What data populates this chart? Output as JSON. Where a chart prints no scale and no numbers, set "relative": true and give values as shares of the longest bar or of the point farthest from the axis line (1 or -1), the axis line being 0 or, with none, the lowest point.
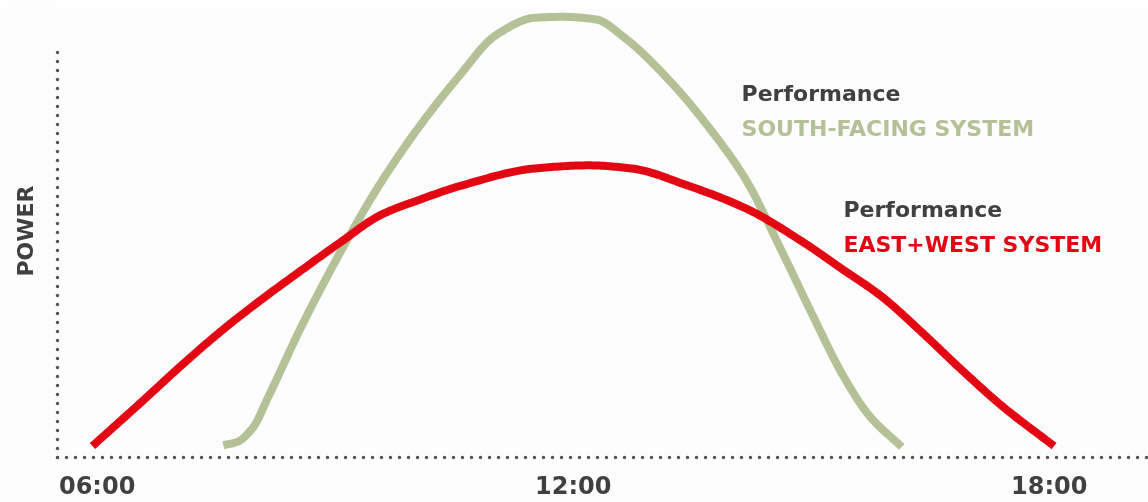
{
  "chart_data": {
    "type": "line",
    "ylabel": "POWER",
    "relative": true,
    "xlim": [
      5.5,
      19.25
    ],
    "xticks": [
      {
        "value": 6,
        "label": "06:00"
      },
      {
        "value": 12,
        "label": "12:00"
      },
      {
        "value": 18,
        "label": "18:00"
      }
    ],
    "series": [
      {
        "name": "SOUTH-FACING SYSTEM",
        "color": "#b4c096",
        "x": [
          7.59,
          7.76,
          7.96,
          8.16,
          8.56,
          8.87,
          9.17,
          9.52,
          10.06,
          10.55,
          11.03,
          11.52,
          11.86,
          12.29,
          12.63,
          13.22,
          13.7,
          14.18,
          14.61,
          15.03,
          15.4,
          15.73,
          16.14
        ],
        "values": [
          0.028,
          0.035,
          0.067,
          0.139,
          0.292,
          0.401,
          0.5,
          0.608,
          0.751,
          0.863,
          0.959,
          0.998,
          1,
          0.994,
          0.955,
          0.854,
          0.751,
          0.629,
          0.475,
          0.318,
          0.186,
          0.095,
          0.024
        ]
      },
      {
        "name": "EAST+WEST SYSTEM",
        "color": "#e30613",
        "x": [
          5.94,
          6.54,
          7.05,
          7.55,
          8.06,
          8.56,
          9.07,
          9.57,
          10.08,
          10.59,
          11.52,
          12.2,
          12.73,
          13.46,
          14.19,
          14.92,
          15.37,
          15.89,
          16.4,
          16.9,
          17.41,
          18.06
        ],
        "values": [
          0.026,
          0.123,
          0.207,
          0.285,
          0.357,
          0.423,
          0.489,
          0.55,
          0.586,
          0.617,
          0.656,
          0.663,
          0.656,
          0.616,
          0.564,
          0.486,
          0.43,
          0.365,
          0.283,
          0.198,
          0.116,
          0.026
        ]
      }
    ],
    "annotations": [
      "Performance",
      "Performance"
    ],
    "grid": false,
    "legend": false,
    "marker": "none",
    "line_style": "solid",
    "tick_labels": "x"
  }
}
